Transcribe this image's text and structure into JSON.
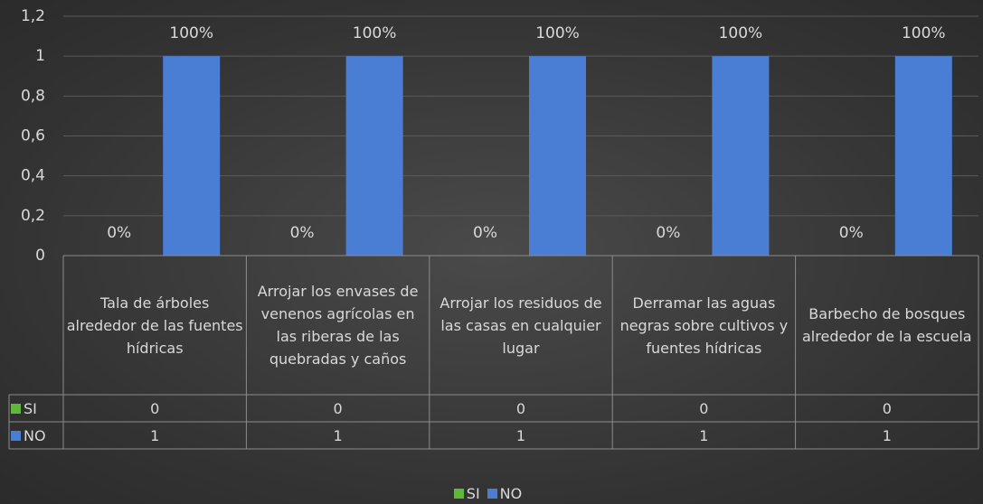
{
  "chart_data": {
    "type": "bar",
    "categories": [
      "Tala de árboles alrededor de las fuentes hídricas",
      "Arrojar los envases de venenos agrícolas en las riberas de las quebradas y caños",
      "Arrojar los residuos de las casas en cualquier lugar",
      "Derramar las aguas negras sobre cultivos y fuentes hídricas",
      "Barbecho de bosques alrededor de la escuela"
    ],
    "series": [
      {
        "name": "SI",
        "color": "#5fb83c",
        "values": [
          0,
          0,
          0,
          0,
          0
        ],
        "value_labels": [
          "0%",
          "0%",
          "0%",
          "0%",
          "0%"
        ]
      },
      {
        "name": "NO",
        "color": "#4a7dd4",
        "values": [
          1,
          1,
          1,
          1,
          1
        ],
        "value_labels": [
          "100%",
          "100%",
          "100%",
          "100%",
          "100%"
        ]
      }
    ],
    "ylim": [
      0,
      1.2
    ],
    "yticks": [
      0,
      {
        "value": 0.2,
        "label": "0,2"
      },
      {
        "value": 0.4,
        "label": "0,4"
      },
      {
        "value": 0.6,
        "label": "0,6"
      },
      {
        "value": 0.8,
        "label": "0,8"
      },
      1,
      {
        "value": 1.2,
        "label": "1,2"
      }
    ],
    "grid": true,
    "legend": "bottom",
    "data_table": true
  }
}
